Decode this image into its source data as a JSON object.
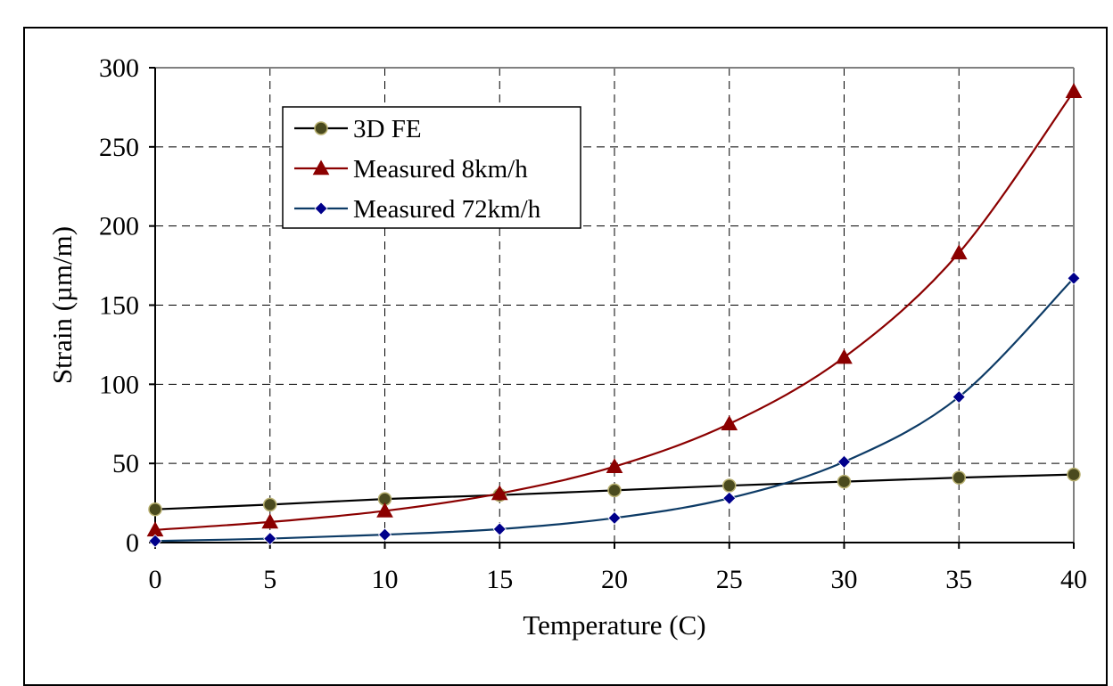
{
  "chart_data": {
    "type": "line",
    "xlabel": "Temperature (C)",
    "ylabel": "Strain (µm/m)",
    "xlim": [
      0,
      40
    ],
    "ylim": [
      0,
      300
    ],
    "x_ticks": [
      0,
      5,
      10,
      15,
      20,
      25,
      30,
      35,
      40
    ],
    "y_ticks": [
      0,
      50,
      100,
      150,
      200,
      250,
      300
    ],
    "grid": true,
    "legend_position": "top-left",
    "x": [
      0,
      5,
      10,
      15,
      20,
      25,
      30,
      35,
      40
    ],
    "series": [
      {
        "name": "3D FE",
        "marker": "circle",
        "color": "#000000",
        "marker_fill": "#4a4a1e",
        "values": [
          21,
          24,
          27.5,
          30,
          33,
          36,
          38.5,
          41,
          43
        ]
      },
      {
        "name": "Measured 8km/h",
        "marker": "triangle",
        "color": "#8b0000",
        "marker_fill": "#8b0000",
        "values": [
          8,
          13,
          20,
          31,
          48,
          75,
          117,
          183,
          285
        ]
      },
      {
        "name": "Measured 72km/h",
        "marker": "diamond",
        "color": "#0d3b66",
        "marker_fill": "#00008b",
        "values": [
          1,
          2.5,
          5,
          8.5,
          15.5,
          28,
          51,
          92,
          167
        ]
      }
    ]
  }
}
